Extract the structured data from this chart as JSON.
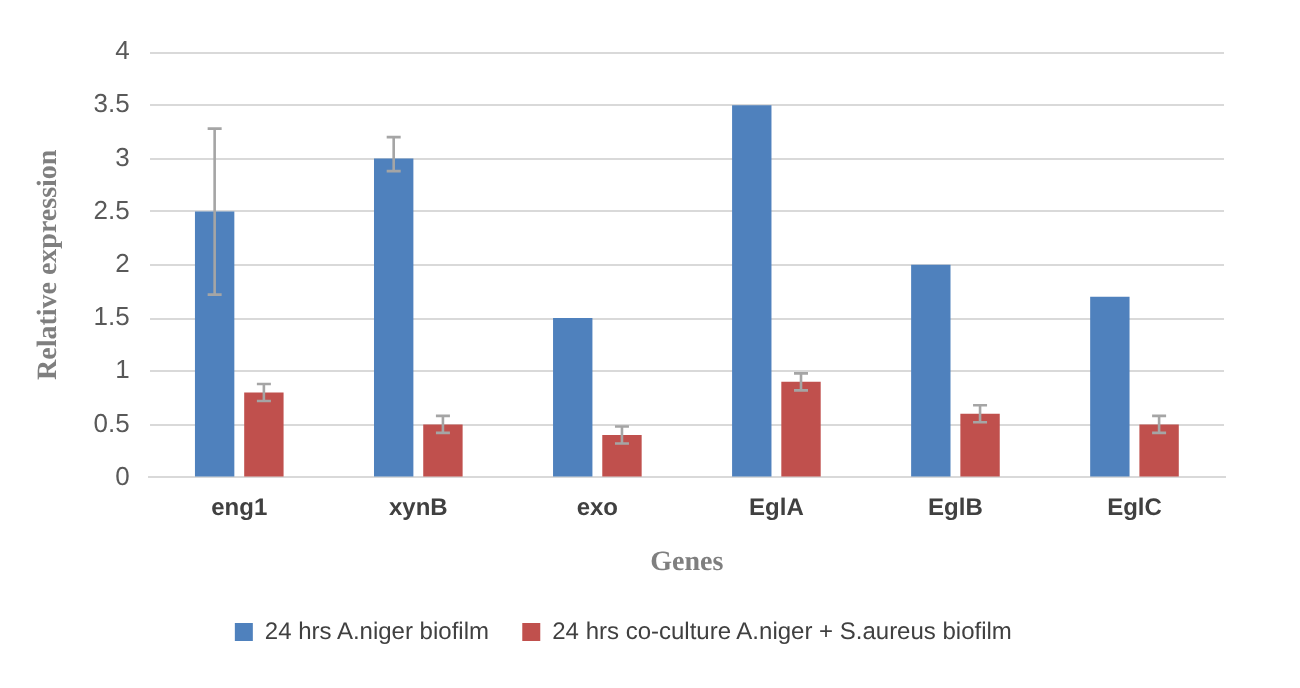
{
  "chart_data": {
    "type": "bar",
    "xlabel": "Genes",
    "ylabel": "Relative expression",
    "categories": [
      "eng1",
      "xynB",
      "exo",
      "EglA",
      "EglB",
      "EglC"
    ],
    "series": [
      {
        "name": "24 hrs A.niger biofilm",
        "color": "#4f81bd",
        "values": [
          2.5,
          3.0,
          1.5,
          3.5,
          2.0,
          1.7
        ],
        "errors": [
          [
            1.72,
            3.28
          ],
          [
            2.88,
            3.2
          ],
          null,
          null,
          null,
          null
        ]
      },
      {
        "name": "24 hrs co-culture A.niger + S.aureus biofilm",
        "color": "#c0504d",
        "values": [
          0.8,
          0.5,
          0.4,
          0.9,
          0.6,
          0.5
        ],
        "errors": [
          0.08,
          0.08,
          0.08,
          0.08,
          0.08,
          0.08
        ]
      }
    ],
    "ylim": [
      0,
      4
    ],
    "yticks": [
      0,
      0.5,
      1,
      1.5,
      2,
      2.5,
      3,
      3.5,
      4
    ],
    "grid": "y",
    "legend": "bottom"
  }
}
